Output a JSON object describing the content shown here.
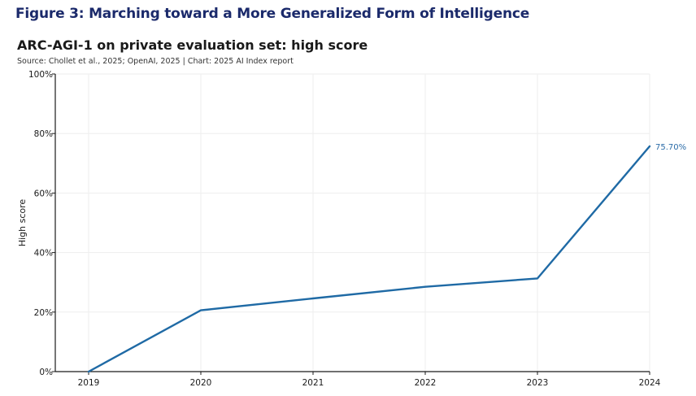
{
  "figure": {
    "title": "Figure 3: Marching toward a More Generalized Form of Intelligence"
  },
  "chart_data": {
    "type": "line",
    "title": "ARC-AGI-1 on private evaluation set: high score",
    "subtitle": "Source: Chollet et al., 2025; OpenAI, 2025 | Chart: 2025 AI Index report",
    "xlabel": "",
    "ylabel": "High score",
    "x": [
      2019,
      2020,
      2021,
      2022,
      2023,
      2024
    ],
    "x_tick_labels": [
      "2019",
      "2020",
      "2021",
      "2022",
      "2023",
      "2024"
    ],
    "y_ticks": [
      0,
      20,
      40,
      60,
      80,
      100
    ],
    "y_tick_labels": [
      "0%",
      "20%",
      "40%",
      "60%",
      "80%",
      "100%"
    ],
    "ylim": [
      0,
      100
    ],
    "series": [
      {
        "values": [
          0,
          20.6,
          24.6,
          28.5,
          31.3,
          75.7
        ],
        "color": "#1f6aa5"
      }
    ],
    "data_labels": [
      {
        "index": 5,
        "text": "75.70%"
      }
    ],
    "grid": true,
    "grid_color": "#eeeeee",
    "legend": "none"
  }
}
